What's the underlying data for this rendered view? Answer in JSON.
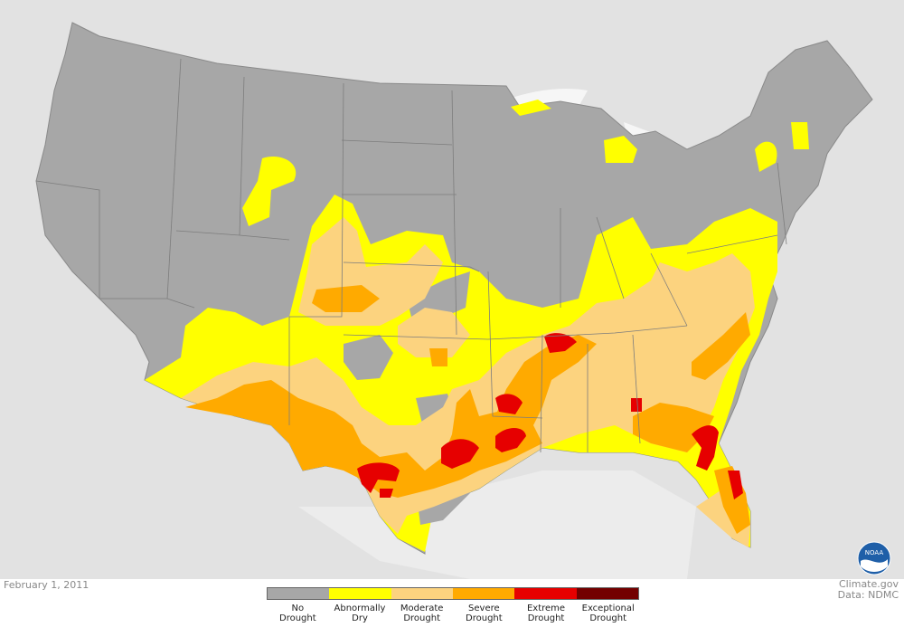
{
  "map": {
    "colors": {
      "land": "#e2e2e2",
      "water": "#ffffff",
      "states": "#a7a7a7",
      "state_border": "#7d7d7d"
    }
  },
  "date": "February 1, 2011",
  "credit": {
    "line1": "Climate.gov",
    "line2": "Data: NDMC"
  },
  "legend": [
    {
      "label1": "No",
      "label2": "Drought",
      "color": "#a7a7a7"
    },
    {
      "label1": "Abnormally",
      "label2": "Dry",
      "color": "#ffff00"
    },
    {
      "label1": "Moderate",
      "label2": "Drought",
      "color": "#fcd37f"
    },
    {
      "label1": "Severe",
      "label2": "Drought",
      "color": "#ffaa00"
    },
    {
      "label1": "Extreme",
      "label2": "Drought",
      "color": "#e60000"
    },
    {
      "label1": "Exceptional",
      "label2": "Drought",
      "color": "#730000"
    }
  ],
  "logo": {
    "text": "NOAA",
    "icon": "noaa-logo-icon"
  }
}
